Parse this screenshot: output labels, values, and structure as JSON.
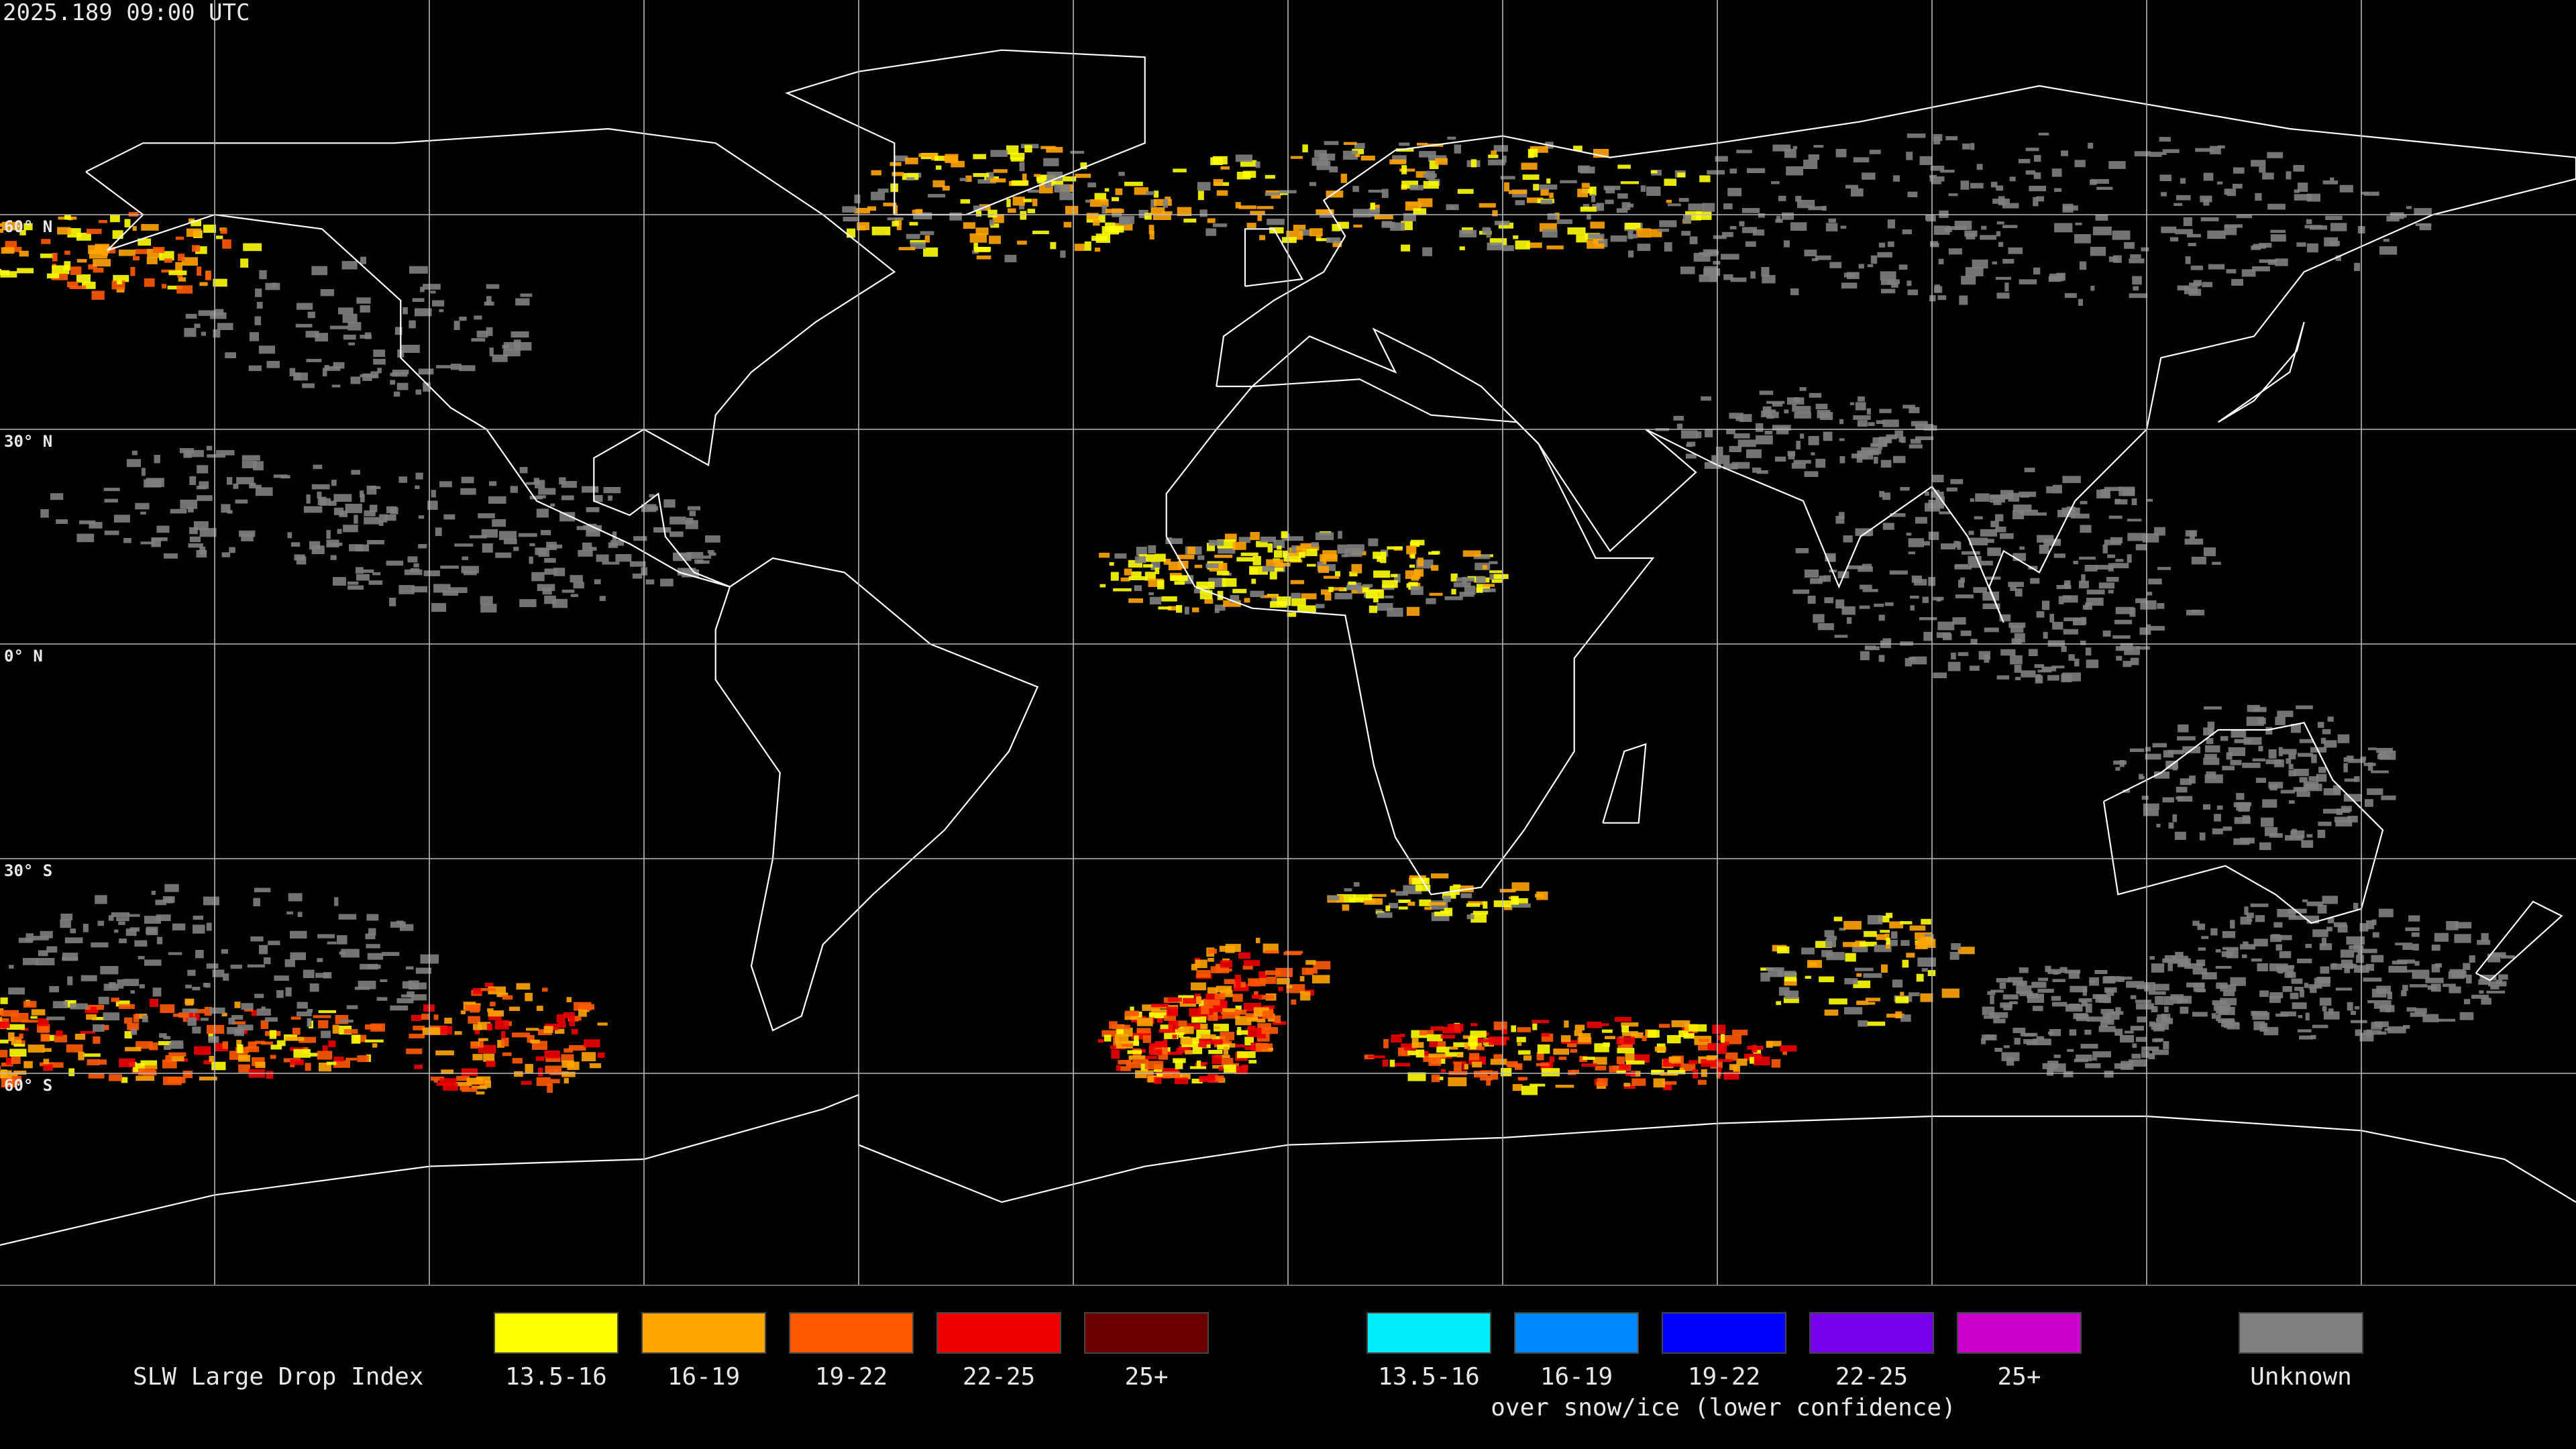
{
  "header": {
    "timestamp": "2025.189 09:00 UTC"
  },
  "map": {
    "latitude_labels": [
      "60° N",
      "30° N",
      "0° N",
      "30° S",
      "60° S"
    ]
  },
  "legend": {
    "title": "SLW Large Drop Index",
    "groups": [
      {
        "items": [
          {
            "label": "13.5-16",
            "color": "#ffff00"
          },
          {
            "label": "16-19",
            "color": "#ffa500"
          },
          {
            "label": "19-22",
            "color": "#ff5a00"
          },
          {
            "label": "22-25",
            "color": "#ee0000"
          },
          {
            "label": "25+",
            "color": "#6a0000"
          }
        ]
      },
      {
        "items": [
          {
            "label": "13.5-16",
            "color": "#00eeff"
          },
          {
            "label": "16-19",
            "color": "#0088ff"
          },
          {
            "label": "19-22",
            "color": "#0000ff"
          },
          {
            "label": "22-25",
            "color": "#7700ee"
          },
          {
            "label": "25+",
            "color": "#cc00cc"
          }
        ],
        "note": "over snow/ice (lower confidence)"
      },
      {
        "items": [
          {
            "label": "Unknown",
            "color": "#808080"
          }
        ]
      }
    ]
  }
}
